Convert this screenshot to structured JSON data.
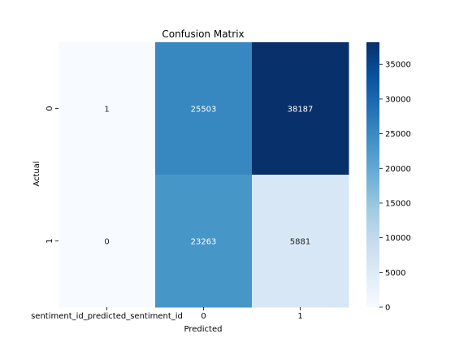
{
  "chart_data": {
    "type": "heatmap",
    "title": "Confusion Matrix",
    "xlabel": "Predicted",
    "ylabel": "Actual",
    "x_categories": [
      "sentiment_id_predicted_sentiment_id",
      "0",
      "1"
    ],
    "y_categories": [
      "0",
      "1"
    ],
    "values": [
      [
        1,
        25503,
        38187
      ],
      [
        0,
        23263,
        5881
      ]
    ],
    "value_labels": [
      [
        "1",
        "25503",
        "38187"
      ],
      [
        "0",
        "23263",
        "5881"
      ]
    ],
    "colormap": "Blues",
    "colorbar": {
      "range": [
        0,
        38187
      ],
      "ticks": [
        0,
        5000,
        10000,
        15000,
        20000,
        25000,
        30000,
        35000
      ],
      "tick_labels": [
        "0",
        "5000",
        "10000",
        "15000",
        "20000",
        "25000",
        "30000",
        "35000"
      ]
    },
    "colors": {
      "low": "#f7fbff",
      "high": "#08306b",
      "text_dark": "#262626",
      "text_light": "#ffffff"
    }
  }
}
